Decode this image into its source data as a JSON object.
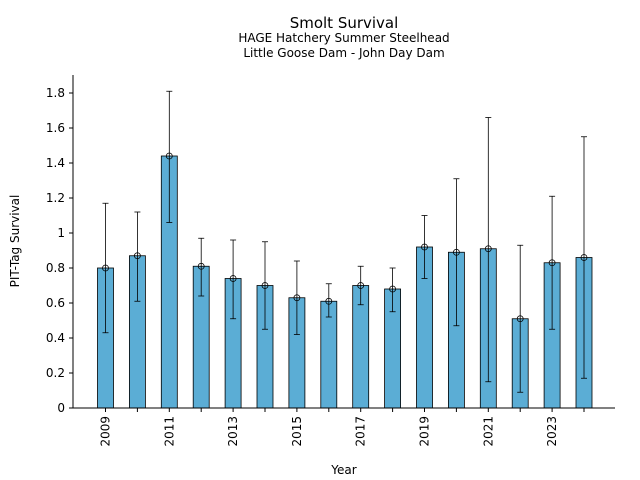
{
  "chart_data": {
    "type": "bar",
    "title": "Smolt Survival",
    "subtitle_lines": [
      "HAGE Hatchery Summer Steelhead",
      "Little Goose Dam - John Day Dam"
    ],
    "xlabel": "Year",
    "ylabel": "PIT-Tag Survival",
    "categories": [
      "2009",
      "2010",
      "2011",
      "2012",
      "2013",
      "2014",
      "2015",
      "2016",
      "2017",
      "2018",
      "2019",
      "2020",
      "2021",
      "2022",
      "2023",
      "2024"
    ],
    "values": [
      0.8,
      0.87,
      1.44,
      0.81,
      0.74,
      0.7,
      0.63,
      0.61,
      0.7,
      0.68,
      0.92,
      0.89,
      0.91,
      0.51,
      0.83,
      0.86
    ],
    "err_low": [
      0.43,
      0.61,
      1.06,
      0.64,
      0.51,
      0.45,
      0.42,
      0.52,
      0.59,
      0.55,
      0.74,
      0.47,
      0.15,
      0.09,
      0.45,
      0.17
    ],
    "err_high": [
      1.17,
      1.12,
      1.81,
      0.97,
      0.96,
      0.95,
      0.84,
      0.71,
      0.81,
      0.8,
      1.1,
      1.31,
      1.66,
      0.93,
      1.21,
      1.55
    ],
    "x_tick_labels": [
      "2009",
      "2011",
      "2013",
      "2015",
      "2017",
      "2019",
      "2021",
      "2023"
    ],
    "y_ticks": [
      0,
      0.2,
      0.4,
      0.6,
      0.8,
      1,
      1.2,
      1.4,
      1.6,
      1.8
    ],
    "y_tick_labels": [
      "0",
      "0.2",
      "0.4",
      "0.6",
      "0.8",
      "1",
      "1.2",
      "1.4",
      "1.6",
      "1.8"
    ],
    "ylim": [
      0,
      1.9
    ],
    "grid": false,
    "legend": "none",
    "bar_color": "#5badd5",
    "edge_color": "#000000"
  }
}
